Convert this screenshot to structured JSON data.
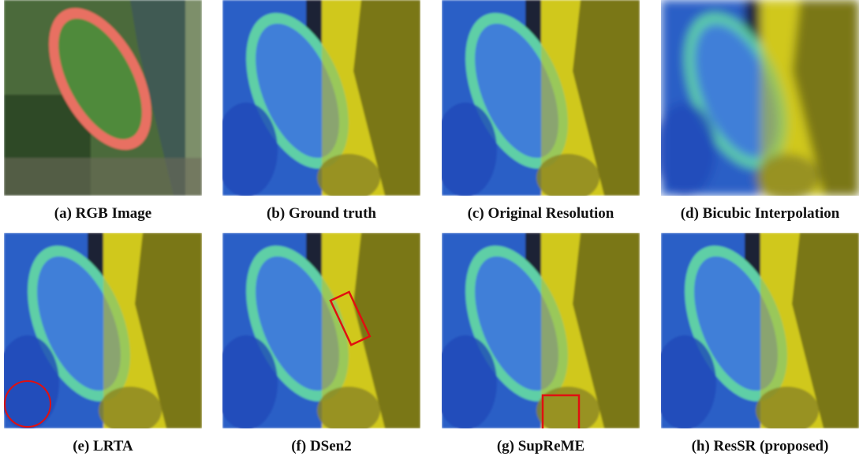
{
  "figure": {
    "panels": [
      {
        "caption": "(a) RGB Image"
      },
      {
        "caption": "(b) Ground truth"
      },
      {
        "caption": "(c) Original Resolution"
      },
      {
        "caption": "(d) Bicubic Interpolation"
      },
      {
        "caption": "(e) LRTA"
      },
      {
        "caption": "(f) DSen2"
      },
      {
        "caption": "(g) SupReME"
      },
      {
        "caption": "(h) ResSR (proposed)"
      }
    ]
  }
}
